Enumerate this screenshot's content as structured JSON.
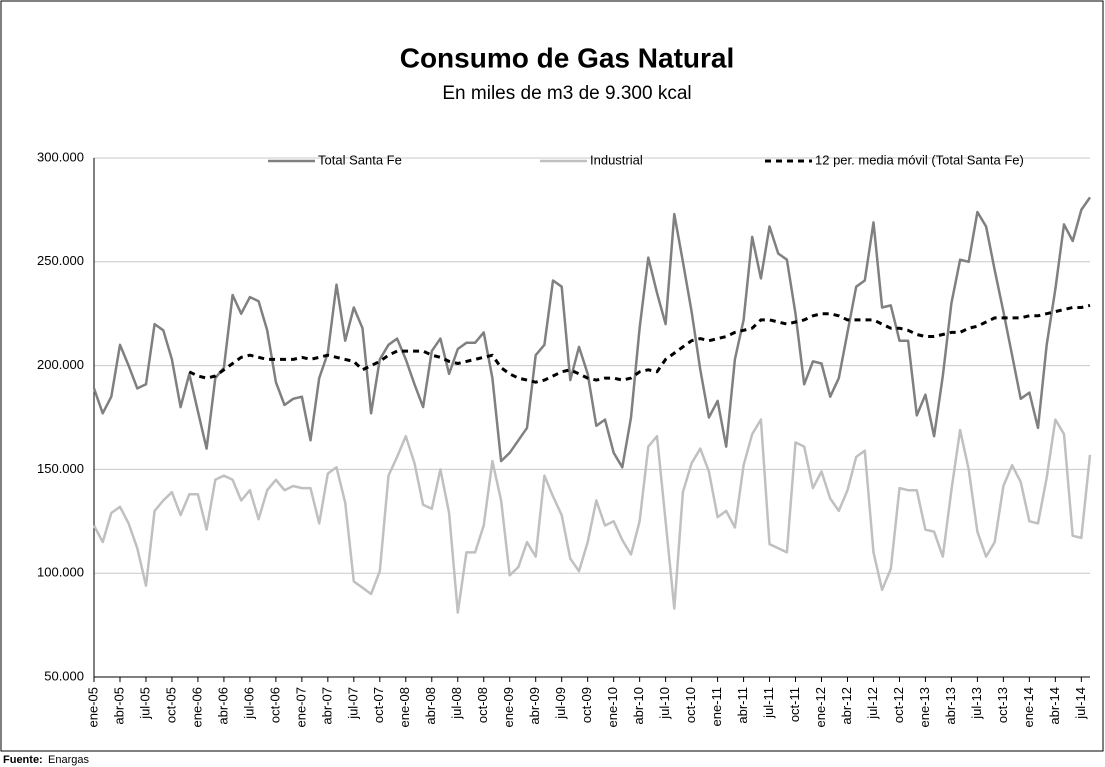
{
  "chart_data": {
    "type": "line",
    "title": "Consumo de Gas Natural",
    "subtitle": "En miles de m3 de 9.300 kcal",
    "source_label": "Fuente:",
    "source": "Enargas",
    "categories": [
      "ene-05",
      null,
      null,
      "abr-05",
      null,
      null,
      "jul-05",
      null,
      null,
      "oct-05",
      null,
      null,
      "ene-06",
      null,
      null,
      "abr-06",
      null,
      null,
      "jul-06",
      null,
      null,
      "oct-06",
      null,
      null,
      "ene-07",
      null,
      null,
      "abr-07",
      null,
      null,
      "jul-07",
      null,
      null,
      "oct-07",
      null,
      null,
      "ene-08",
      null,
      null,
      "abr-08",
      null,
      null,
      "jul-08",
      null,
      null,
      "oct-08",
      null,
      null,
      "ene-09",
      null,
      null,
      "abr-09",
      null,
      null,
      "jul-09",
      null,
      null,
      "oct-09",
      null,
      null,
      "ene-10",
      null,
      null,
      "abr-10",
      null,
      null,
      "jul-10",
      null,
      null,
      "oct-10",
      null,
      null,
      "ene-11",
      null,
      null,
      "abr-11",
      null,
      null,
      "jul-11",
      null,
      null,
      "oct-11",
      null,
      null,
      "ene-12",
      null,
      null,
      "abr-12",
      null,
      null,
      "jul-12",
      null,
      null,
      "oct-12",
      null,
      null,
      "ene-13",
      null,
      null,
      "abr-13",
      null,
      null,
      "jul-13",
      null,
      null,
      "oct-13",
      null,
      null,
      "ene-14",
      null,
      null,
      "abr-14",
      null,
      null,
      "jul-14",
      null
    ],
    "series": [
      {
        "name": "Total Santa Fe",
        "color": "#808080",
        "dash": false,
        "values": [
          189000,
          177000,
          185000,
          210000,
          200000,
          189000,
          191000,
          220000,
          217000,
          203000,
          180000,
          196000,
          178000,
          160000,
          194000,
          199000,
          234000,
          225000,
          233000,
          231000,
          217000,
          192000,
          181000,
          184000,
          185000,
          164000,
          194000,
          206000,
          239000,
          212000,
          228000,
          218000,
          177000,
          203000,
          210000,
          213000,
          203000,
          191000,
          180000,
          207000,
          213000,
          196000,
          208000,
          211000,
          211000,
          216000,
          194000,
          154000,
          158000,
          164000,
          170000,
          205000,
          210000,
          241000,
          238000,
          193000,
          209000,
          196000,
          171000,
          174000,
          158000,
          151000,
          175000,
          218000,
          252000,
          235000,
          220000,
          273000,
          250000,
          226000,
          198000,
          175000,
          183000,
          161000,
          203000,
          222000,
          262000,
          242000,
          267000,
          254000,
          251000,
          225000,
          191000,
          202000,
          201000,
          185000,
          194000,
          216000,
          238000,
          241000,
          269000,
          228000,
          229000,
          212000,
          212000,
          176000,
          186000,
          166000,
          195000,
          230000,
          251000,
          250000,
          274000,
          267000,
          246000,
          226000,
          205000,
          184000,
          187000,
          170000,
          210000,
          237000,
          268000,
          260000,
          275000,
          281000
        ]
      },
      {
        "name": "Industrial",
        "color": "#c0c0c0",
        "dash": false,
        "values": [
          123000,
          115000,
          129000,
          132000,
          124000,
          112000,
          94000,
          130000,
          135000,
          139000,
          128000,
          138000,
          138000,
          121000,
          145000,
          147000,
          145000,
          135000,
          140000,
          126000,
          140000,
          145000,
          140000,
          142000,
          141000,
          141000,
          124000,
          148000,
          151000,
          134000,
          96000,
          93000,
          90000,
          101000,
          147000,
          156000,
          166000,
          153000,
          133000,
          131000,
          150000,
          129000,
          81000,
          110000,
          110000,
          123000,
          154000,
          135000,
          99000,
          103000,
          115000,
          108000,
          147000,
          137000,
          128000,
          107000,
          101000,
          115000,
          135000,
          123000,
          125000,
          116000,
          109000,
          125000,
          161000,
          166000,
          125000,
          83000,
          139000,
          153000,
          160000,
          149000,
          127000,
          130000,
          122000,
          152000,
          167000,
          174000,
          114000,
          112000,
          110000,
          163000,
          161000,
          141000,
          149000,
          136000,
          130000,
          140000,
          156000,
          159000,
          110000,
          92000,
          102000,
          141000,
          140000,
          140000,
          121000,
          120000,
          108000,
          140000,
          169000,
          150000,
          120000,
          108000,
          115000,
          142000,
          152000,
          144000,
          125000,
          124000,
          146000,
          174000,
          167000,
          118000,
          117000,
          157000
        ]
      },
      {
        "name": "12 per. media móvil (Total Santa Fe)",
        "color": "#000000",
        "dash": true,
        "values": [
          null,
          null,
          null,
          null,
          null,
          null,
          null,
          null,
          null,
          null,
          null,
          197000,
          195000,
          194000,
          195000,
          198000,
          201000,
          204000,
          205000,
          204000,
          203000,
          203000,
          203000,
          203000,
          204000,
          203000,
          204000,
          205000,
          204000,
          203000,
          202000,
          198000,
          200000,
          202000,
          205000,
          207000,
          207000,
          207000,
          207000,
          205000,
          204000,
          202000,
          201000,
          202000,
          203000,
          204000,
          205000,
          199000,
          196000,
          194000,
          193000,
          192000,
          193000,
          195000,
          197000,
          198000,
          196000,
          194000,
          193000,
          194000,
          194000,
          193000,
          194000,
          197000,
          198000,
          197000,
          203000,
          206000,
          209000,
          212000,
          213000,
          212000,
          213000,
          214000,
          216000,
          217000,
          218000,
          222000,
          222000,
          221000,
          220000,
          221000,
          222000,
          224000,
          225000,
          225000,
          224000,
          222000,
          222000,
          222000,
          222000,
          220000,
          218000,
          218000,
          217000,
          215000,
          214000,
          214000,
          215000,
          216000,
          216000,
          218000,
          219000,
          221000,
          223000,
          223000,
          223000,
          223000,
          224000,
          224000,
          225000,
          226000,
          227000,
          228000,
          228000,
          229000
        ]
      }
    ],
    "ylim": [
      50000,
      300000
    ],
    "yticks": [
      {
        "value": 50000,
        "label": "50.000"
      },
      {
        "value": 100000,
        "label": "100.000"
      },
      {
        "value": 150000,
        "label": "150.000"
      },
      {
        "value": 200000,
        "label": "200.000"
      },
      {
        "value": 250000,
        "label": "250.000"
      },
      {
        "value": 300000,
        "label": "300.000"
      }
    ],
    "grid": true
  }
}
